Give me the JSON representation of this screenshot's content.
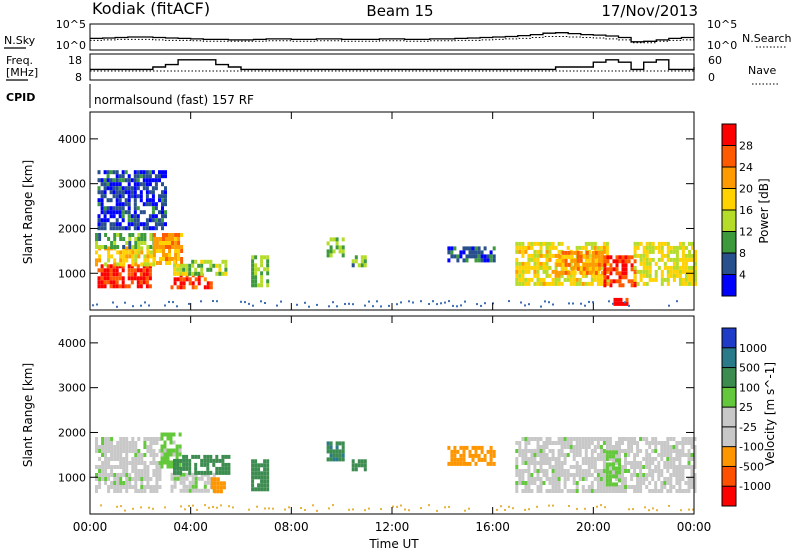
{
  "header": {
    "radar_title": "Kodiak (fitACF)",
    "beam_title": "Beam 15",
    "date": "17/Nov/2013"
  },
  "panel_labels": {
    "nsky": "N.Sky",
    "nsearch": "N.Search",
    "freq_line1": "Freq.",
    "freq_line2": "[MHz]",
    "nave": "Nave",
    "cpid": "CPID",
    "cpid_text": "normalsound (fast) 157 RF"
  },
  "noise_axis": {
    "left_ticks": [
      "10^5",
      "10^0"
    ],
    "right_ticks": [
      "10^5",
      "10^0"
    ]
  },
  "freq_axis": {
    "left_ticks": [
      "18",
      "8"
    ],
    "right_ticks": [
      "60",
      "0"
    ]
  },
  "colorbar_power": {
    "label": "Power [dB]",
    "ticks": [
      "28",
      "24",
      "20",
      "16",
      "12",
      "8",
      "4"
    ],
    "colors": [
      "#ff0000",
      "#ff5a00",
      "#ff9b00",
      "#ffd200",
      "#b4dc28",
      "#3c9a3c",
      "#28508c",
      "#0000ff"
    ]
  },
  "colorbar_velocity": {
    "label": "Velocity [m s^-1]",
    "ticks": [
      "1000",
      "500",
      "100",
      "25",
      "-25",
      "-100",
      "-500",
      "-1000"
    ],
    "colors": [
      "#1e3cc8",
      "#2a7a8a",
      "#3c8c50",
      "#64c83c",
      "#c8c8c8",
      "#c8c8c8",
      "#ff9600",
      "#ff5000",
      "#ff0000"
    ]
  },
  "range_axis": {
    "label": "Slant Range [km]",
    "ticks": [
      "4000",
      "3000",
      "2000",
      "1000"
    ]
  },
  "time_axis": {
    "label": "Time UT",
    "ticks": [
      "00:00",
      "04:00",
      "08:00",
      "12:00",
      "16:00",
      "20:00",
      "00:00"
    ]
  },
  "chart_data": [
    {
      "type": "line",
      "name": "noise",
      "x": [
        0,
        0.5,
        1,
        1.5,
        2,
        2.5,
        3,
        3.5,
        4,
        4.5,
        5,
        5.5,
        6,
        6.5,
        7,
        7.5,
        8,
        8.5,
        9,
        9.5,
        10,
        10.5,
        11,
        11.5,
        12,
        12.5,
        13,
        13.5,
        14,
        14.5,
        15,
        15.5,
        16,
        16.5,
        17,
        17.5,
        18,
        18.5,
        19,
        19.5,
        20,
        20.5,
        21,
        21.5,
        22,
        22.5,
        23,
        23.5,
        24
      ],
      "series": [
        {
          "name": "N.Sky",
          "values": [
            2.2,
            2.3,
            2.4,
            2.5,
            2.5,
            2.4,
            2.3,
            2.2,
            2.1,
            2.0,
            2.0,
            1.9,
            1.9,
            2.0,
            2.1,
            2.1,
            2.0,
            2.0,
            2.1,
            2.1,
            2.0,
            2.0,
            2.0,
            2.1,
            2.1,
            2.0,
            2.0,
            2.1,
            2.1,
            2.2,
            2.3,
            2.4,
            2.5,
            2.6,
            2.8,
            3.0,
            3.3,
            3.4,
            3.2,
            3.0,
            2.9,
            2.7,
            2.4,
            1.5,
            1.6,
            1.9,
            2.2,
            2.4,
            2.4
          ]
        },
        {
          "name": "N.Search",
          "values": [
            1.8,
            1.9,
            2.0,
            2.0,
            2.0,
            1.9,
            1.8,
            1.8,
            1.7,
            1.6,
            1.6,
            1.6,
            1.6,
            1.6,
            1.7,
            1.7,
            1.6,
            1.6,
            1.7,
            1.7,
            1.6,
            1.6,
            1.6,
            1.7,
            1.7,
            1.6,
            1.6,
            1.7,
            1.7,
            1.8,
            1.8,
            1.9,
            2.0,
            2.1,
            2.2,
            2.4,
            2.6,
            2.6,
            2.5,
            2.4,
            2.3,
            2.1,
            1.9,
            1.3,
            1.3,
            1.6,
            1.8,
            1.9,
            1.9
          ]
        }
      ],
      "ylim": [
        0,
        5
      ],
      "log_y": true
    },
    {
      "type": "line",
      "name": "frequency_nave",
      "x": [
        0,
        0.5,
        1,
        1.5,
        2,
        2.5,
        3,
        3.5,
        4,
        4.5,
        5,
        5.5,
        6,
        6.5,
        7,
        7.5,
        8,
        8.5,
        9,
        9.5,
        10,
        10.5,
        11,
        11.5,
        12,
        12.5,
        13,
        13.5,
        14,
        14.5,
        15,
        15.5,
        16,
        16.5,
        17,
        17.5,
        18,
        18.5,
        19,
        19.5,
        20,
        20.5,
        21,
        21.5,
        22,
        22.5,
        23,
        23.5,
        24
      ],
      "series": [
        {
          "name": "Freq. [MHz]",
          "values": [
            12,
            12,
            12,
            12,
            12,
            13,
            14,
            16,
            16,
            16,
            14,
            13,
            12,
            12,
            12,
            12,
            12,
            12,
            12,
            12,
            12,
            12,
            12,
            12,
            12,
            12,
            12,
            12,
            12,
            12,
            12,
            12,
            12,
            12,
            12,
            12,
            12,
            13,
            13,
            13,
            15,
            16,
            15,
            12,
            15,
            16,
            12,
            12,
            13
          ]
        },
        {
          "name": "Nave",
          "values": [
            20,
            20,
            20,
            20,
            20,
            20,
            20,
            20,
            20,
            20,
            20,
            20,
            20,
            20,
            20,
            20,
            20,
            20,
            20,
            20,
            20,
            20,
            20,
            20,
            20,
            20,
            20,
            20,
            20,
            20,
            20,
            20,
            20,
            20,
            20,
            20,
            20,
            20,
            20,
            20,
            20,
            20,
            20,
            20,
            20,
            20,
            20,
            20,
            20
          ]
        }
      ],
      "ylim": [
        8,
        18
      ],
      "y2lim": [
        0,
        60
      ]
    },
    {
      "type": "heatmap",
      "name": "power",
      "xlabel": "Time UT",
      "ylabel": "Slant Range [km]",
      "xlim": [
        0,
        24
      ],
      "ylim": [
        180,
        4600
      ],
      "units": "dB",
      "clim": [
        0,
        32
      ],
      "patches": [
        {
          "t": [
            0.3,
            2.4
          ],
          "r": [
            700,
            1200
          ],
          "v": 29
        },
        {
          "t": [
            0.2,
            2.5
          ],
          "r": [
            1200,
            1600
          ],
          "v": 18
        },
        {
          "t": [
            0.2,
            2.6
          ],
          "r": [
            1600,
            1900
          ],
          "v": 10
        },
        {
          "t": [
            2.5,
            3.6
          ],
          "r": [
            1200,
            1900
          ],
          "v": 22
        },
        {
          "t": [
            3.2,
            4.8
          ],
          "r": [
            700,
            1000
          ],
          "v": 27
        },
        {
          "t": [
            3.3,
            5.4
          ],
          "r": [
            1000,
            1300
          ],
          "v": 13
        },
        {
          "t": [
            6.4,
            7.1
          ],
          "r": [
            700,
            1400
          ],
          "v": 12
        },
        {
          "t": [
            9.4,
            10.0
          ],
          "r": [
            1400,
            1800
          ],
          "v": 12
        },
        {
          "t": [
            10.4,
            10.9
          ],
          "r": [
            1200,
            1400
          ],
          "v": 11
        },
        {
          "t": [
            14.2,
            16.0
          ],
          "r": [
            1300,
            1600
          ],
          "v": 6
        },
        {
          "t": [
            16.9,
            20.5
          ],
          "r": [
            800,
            1700
          ],
          "v": 17
        },
        {
          "t": [
            18.5,
            20.4
          ],
          "r": [
            1000,
            1500
          ],
          "v": 22
        },
        {
          "t": [
            20.4,
            21.7
          ],
          "r": [
            700,
            1400
          ],
          "v": 28
        },
        {
          "t": [
            21.6,
            24.0
          ],
          "r": [
            800,
            1700
          ],
          "v": 16
        },
        {
          "t": [
            20.8,
            21.4
          ],
          "r": [
            300,
            450
          ],
          "v": 31
        },
        {
          "t": [
            0.3,
            3.0
          ],
          "r": [
            2000,
            3300
          ],
          "v": 5
        }
      ]
    },
    {
      "type": "heatmap",
      "name": "velocity",
      "xlabel": "Time UT",
      "ylabel": "Slant Range [km]",
      "xlim": [
        0,
        24
      ],
      "ylim": [
        180,
        4600
      ],
      "units": "m s^-1",
      "clim": [
        -1000,
        1000
      ],
      "patches": [
        {
          "t": [
            0.2,
            2.8
          ],
          "r": [
            700,
            1900
          ],
          "v": 0
        },
        {
          "t": [
            2.8,
            3.6
          ],
          "r": [
            1200,
            2000
          ],
          "v": 50
        },
        {
          "t": [
            3.2,
            5.0
          ],
          "r": [
            700,
            1100
          ],
          "v": 0
        },
        {
          "t": [
            3.3,
            5.5
          ],
          "r": [
            1100,
            1500
          ],
          "v": 200
        },
        {
          "t": [
            4.8,
            5.4
          ],
          "r": [
            700,
            1000
          ],
          "v": -300
        },
        {
          "t": [
            6.4,
            7.1
          ],
          "r": [
            700,
            1400
          ],
          "v": 300
        },
        {
          "t": [
            9.4,
            10.0
          ],
          "r": [
            1400,
            1800
          ],
          "v": 500
        },
        {
          "t": [
            10.4,
            10.9
          ],
          "r": [
            1200,
            1400
          ],
          "v": 200
        },
        {
          "t": [
            14.2,
            16.0
          ],
          "r": [
            1300,
            1700
          ],
          "v": -300
        },
        {
          "t": [
            16.9,
            24.0
          ],
          "r": [
            700,
            1900
          ],
          "v": 0
        },
        {
          "t": [
            20.5,
            21.0
          ],
          "r": [
            800,
            1600
          ],
          "v": 60
        }
      ]
    }
  ]
}
